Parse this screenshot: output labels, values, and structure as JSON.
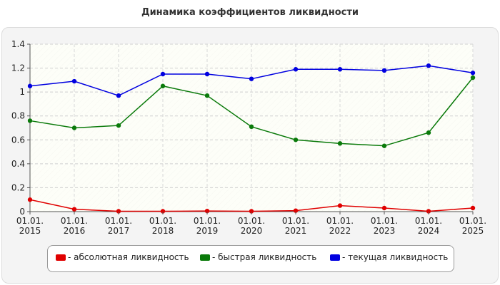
{
  "chart_data": {
    "type": "line",
    "title": "Динамика коэффициентов ликвидности",
    "xlabel": "",
    "ylabel": "",
    "categories": [
      "01.01.\n2015",
      "01.01.\n2016",
      "01.01.\n2017",
      "01.01.\n2018",
      "01.01.\n2019",
      "01.01.\n2020",
      "01.01.\n2021",
      "01.01.\n2022",
      "01.01.\n2023",
      "01.01.\n2024",
      "01.01.\n2025"
    ],
    "x_labels": [
      {
        "line1": "01.01.",
        "line2": "2015"
      },
      {
        "line1": "01.01.",
        "line2": "2016"
      },
      {
        "line1": "01.01.",
        "line2": "2017"
      },
      {
        "line1": "01.01.",
        "line2": "2018"
      },
      {
        "line1": "01.01.",
        "line2": "2019"
      },
      {
        "line1": "01.01.",
        "line2": "2020"
      },
      {
        "line1": "01.01.",
        "line2": "2021"
      },
      {
        "line1": "01.01.",
        "line2": "2022"
      },
      {
        "line1": "01.01.",
        "line2": "2023"
      },
      {
        "line1": "01.01.",
        "line2": "2024"
      },
      {
        "line1": "01.01.",
        "line2": "2025"
      }
    ],
    "ylim": [
      0,
      1.4
    ],
    "yticks": [
      "0",
      "0.2",
      "0.4",
      "0.6",
      "0.8",
      "1",
      "1.2",
      "1.4"
    ],
    "grid": true,
    "legend_position": "bottom",
    "series": [
      {
        "name": "- абсолютная ликвидность",
        "color": "#e00000",
        "values": [
          0.1,
          0.02,
          0.003,
          0.003,
          0.005,
          0.003,
          0.008,
          0.05,
          0.03,
          0.003,
          0.03
        ]
      },
      {
        "name": "- быстрая ликвидность",
        "color": "#0a7a0a",
        "values": [
          0.76,
          0.7,
          0.72,
          1.05,
          0.97,
          0.71,
          0.6,
          0.57,
          0.55,
          0.66,
          1.12
        ]
      },
      {
        "name": "- текущая ликвидность",
        "color": "#0000e0",
        "values": [
          1.05,
          1.09,
          0.97,
          1.15,
          1.15,
          1.11,
          1.19,
          1.19,
          1.18,
          1.22,
          1.16
        ]
      }
    ]
  }
}
